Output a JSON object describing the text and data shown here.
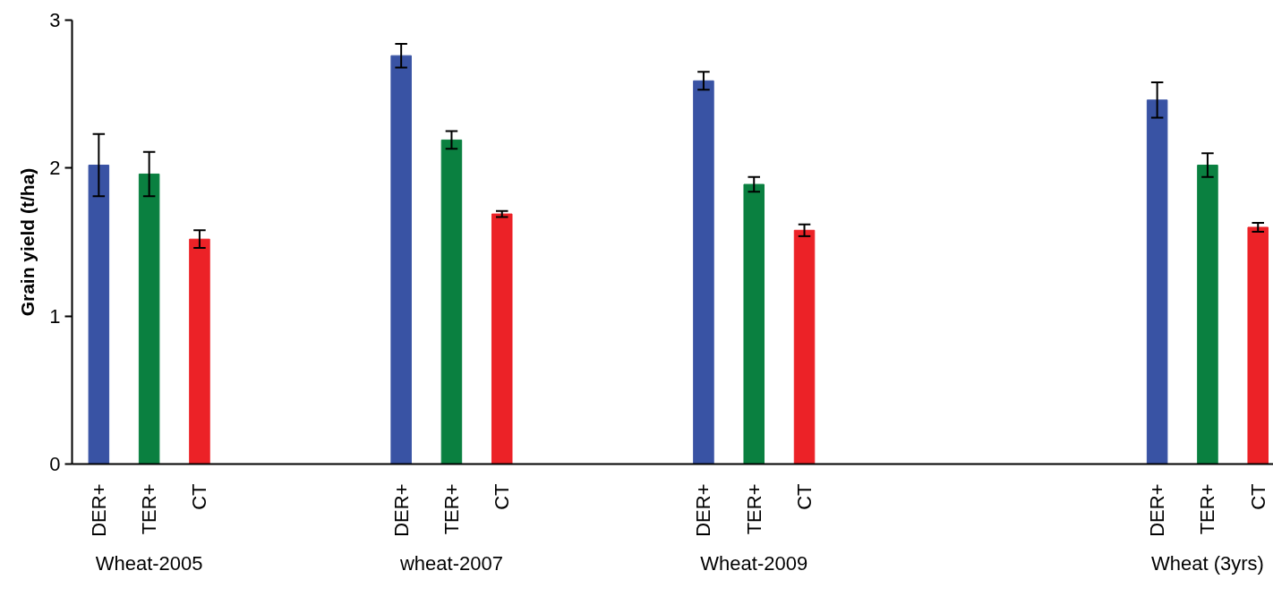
{
  "chart_data": {
    "type": "bar",
    "ylabel": "Grain yield (t/ha)",
    "categories": [
      "DER+",
      "TER+",
      "CT",
      null,
      null,
      null,
      "DER+",
      "TER+",
      "CT",
      null,
      null,
      null,
      "DER+",
      "TER+",
      "CT",
      null,
      null,
      null,
      null,
      null,
      null,
      "DER+",
      "TER+",
      "CT"
    ],
    "values": [
      2.02,
      1.96,
      1.52,
      null,
      null,
      null,
      2.76,
      2.19,
      1.69,
      null,
      null,
      null,
      2.59,
      1.89,
      1.58,
      null,
      null,
      null,
      null,
      null,
      null,
      2.46,
      2.02,
      1.6
    ],
    "errors": [
      0.21,
      0.15,
      0.06,
      null,
      null,
      null,
      0.08,
      0.06,
      0.02,
      null,
      null,
      null,
      0.06,
      0.05,
      0.04,
      null,
      null,
      null,
      null,
      null,
      null,
      0.12,
      0.08,
      0.03
    ],
    "colors": [
      "#3953a4",
      "#0a8040",
      "#ec2227",
      null,
      null,
      null,
      "#3953a4",
      "#0a8040",
      "#ec2227",
      null,
      null,
      null,
      "#3953a4",
      "#0a8040",
      "#ec2227",
      null,
      null,
      null,
      null,
      null,
      null,
      "#3953a4",
      "#0a8040",
      "#ec2227"
    ],
    "annotations": [
      "Wheat-2005",
      "wheat-2007",
      "Wheat-2009",
      "Wheat (3yrs)"
    ],
    "ylim": [
      0,
      3
    ],
    "yticks": [
      0,
      1,
      2,
      3
    ],
    "grid": false
  }
}
